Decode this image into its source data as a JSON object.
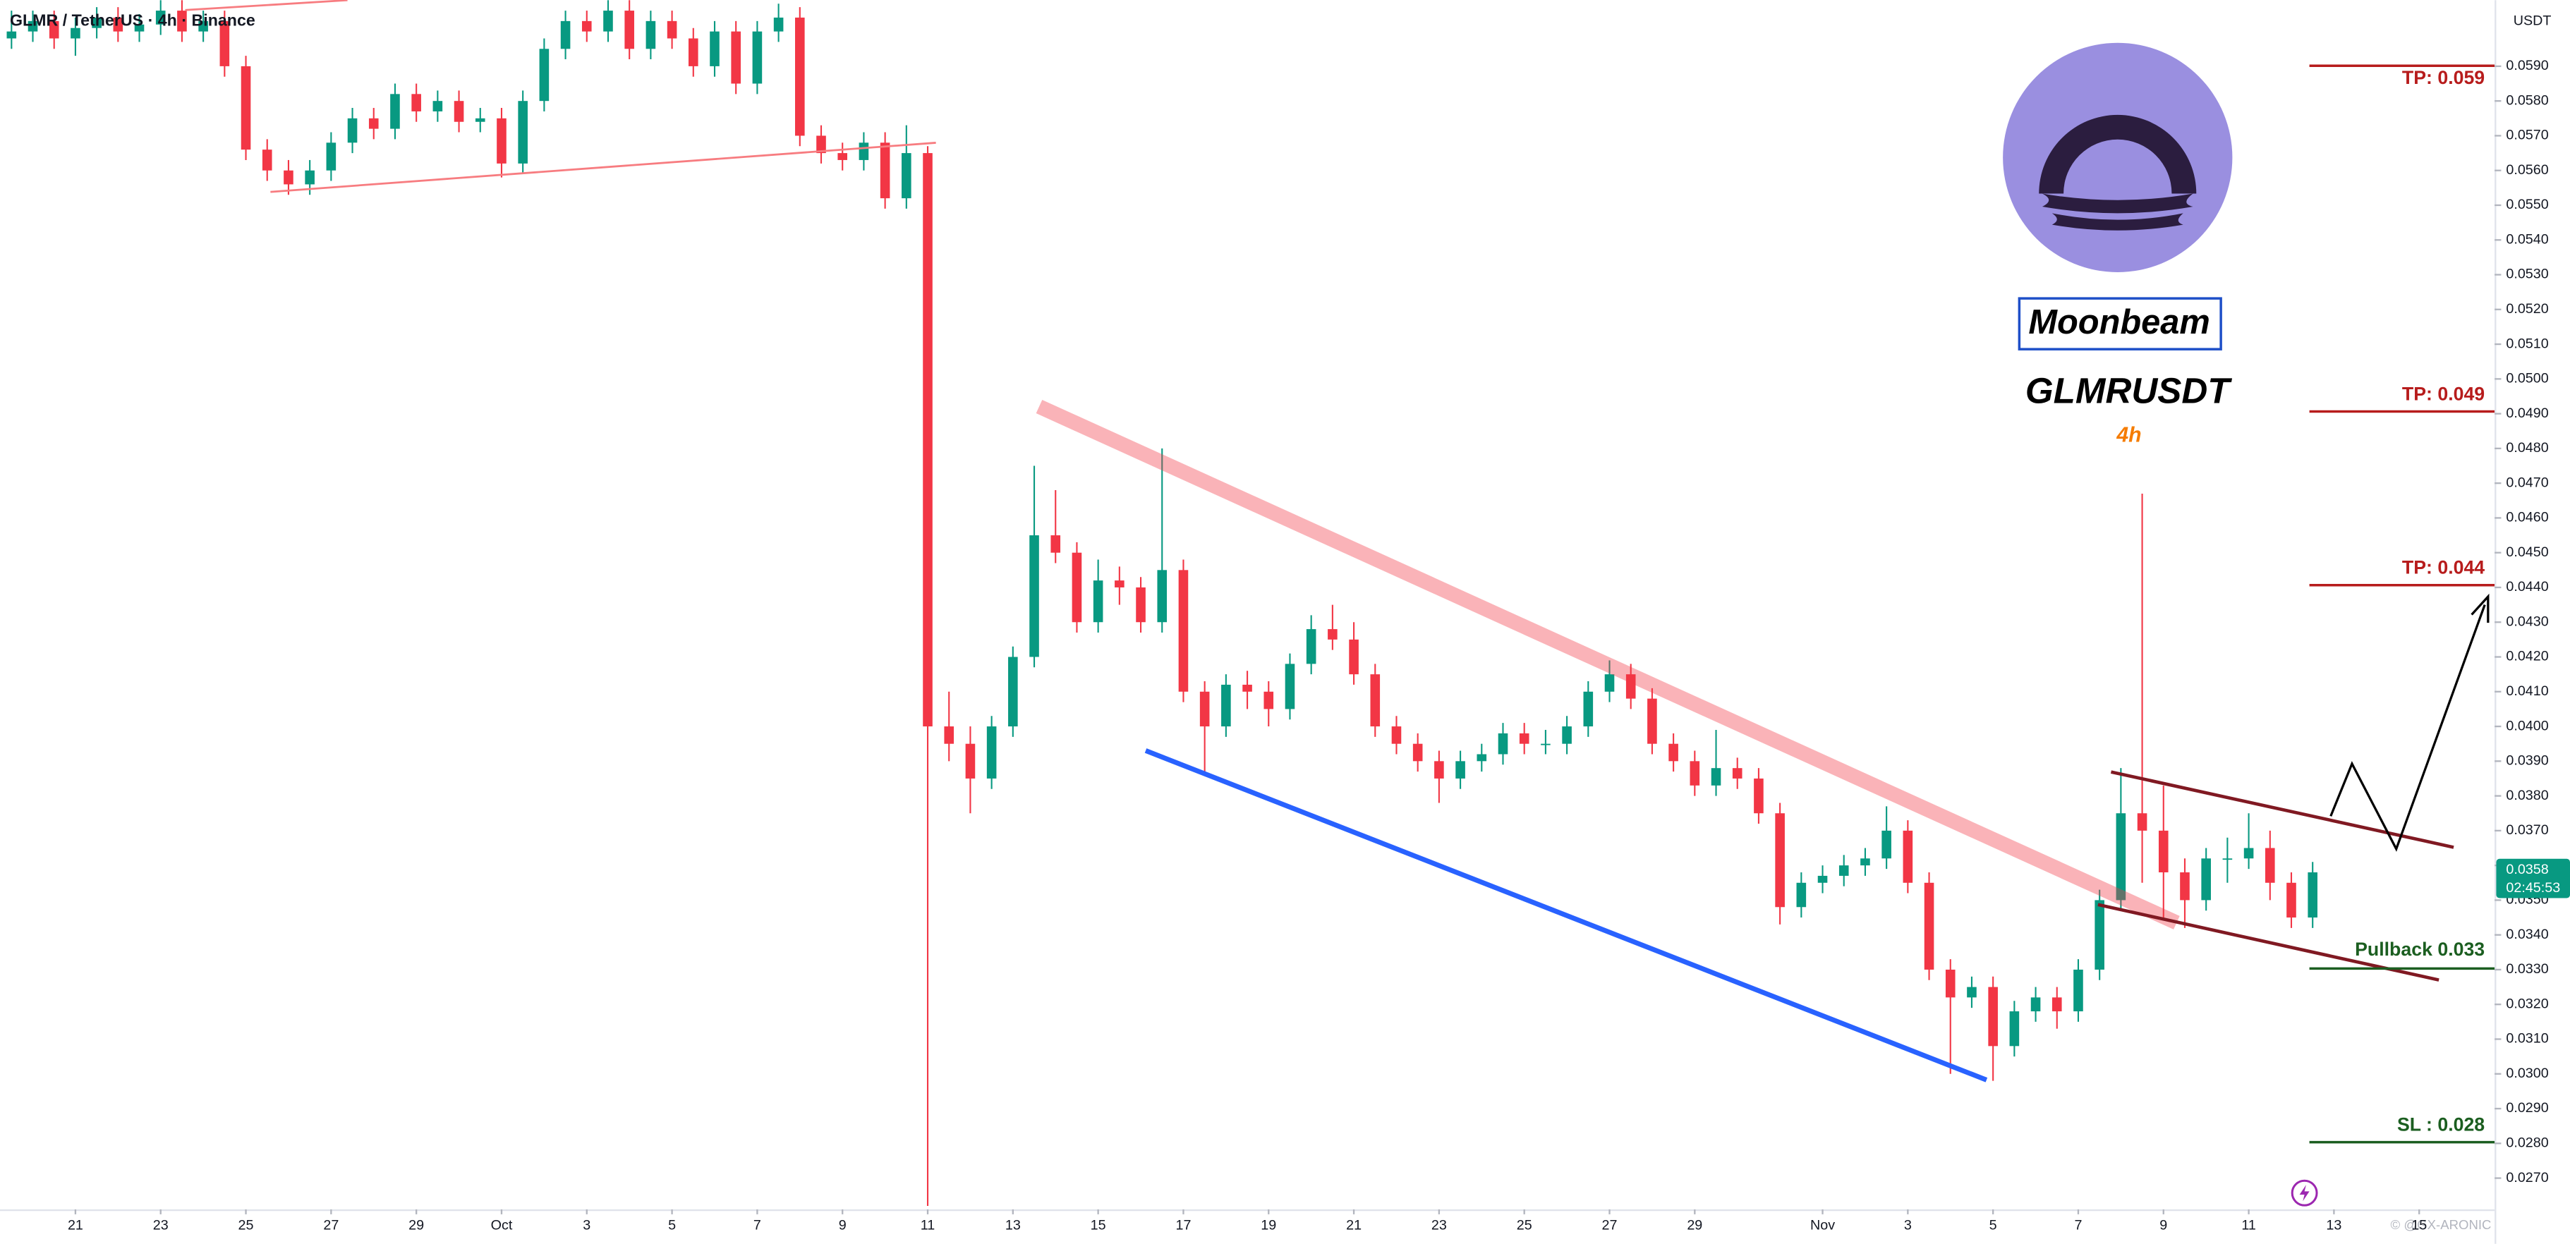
{
  "chart_data": {
    "type": "candlestick",
    "title": "GLMR / TetherUS · 4h · Binance",
    "currency": "USDT",
    "last_price": "0.0358",
    "countdown": "02:45:53",
    "annotations": [
      "TP: 0.059",
      "TP: 0.049",
      "TP: 0.044",
      "Pullback 0.033",
      "SL : 0.028",
      "Moonbeam",
      "GLMRUSDT",
      "4h",
      "© @GX-ARONIC"
    ],
    "up_color": "#089981",
    "down_color": "#f23645",
    "grid": false,
    "xlim": [
      -1.77,
      56.77
    ],
    "ylim": [
      0.0261,
      0.0609
    ],
    "xticks": [
      {
        "value": 0,
        "label": "21"
      },
      {
        "value": 2,
        "label": "23"
      },
      {
        "value": 4,
        "label": "25"
      },
      {
        "value": 6,
        "label": "27"
      },
      {
        "value": 8,
        "label": "29"
      },
      {
        "value": 10,
        "label": "Oct"
      },
      {
        "value": 12,
        "label": "3"
      },
      {
        "value": 14,
        "label": "5"
      },
      {
        "value": 16,
        "label": "7"
      },
      {
        "value": 18,
        "label": "9"
      },
      {
        "value": 20,
        "label": "11"
      },
      {
        "value": 22,
        "label": "13"
      },
      {
        "value": 24,
        "label": "15"
      },
      {
        "value": 26,
        "label": "17"
      },
      {
        "value": 28,
        "label": "19"
      },
      {
        "value": 30,
        "label": "21"
      },
      {
        "value": 32,
        "label": "23"
      },
      {
        "value": 34,
        "label": "25"
      },
      {
        "value": 36,
        "label": "27"
      },
      {
        "value": 38,
        "label": "29"
      },
      {
        "value": 41,
        "label": "Nov"
      },
      {
        "value": 43,
        "label": "3"
      },
      {
        "value": 45,
        "label": "5"
      },
      {
        "value": 47,
        "label": "7"
      },
      {
        "value": 49,
        "label": "9"
      },
      {
        "value": 51,
        "label": "11"
      },
      {
        "value": 53,
        "label": "13"
      },
      {
        "value": 55,
        "label": "15"
      }
    ],
    "yticks": [
      {
        "value": 0.027,
        "label": "0.0270"
      },
      {
        "value": 0.028,
        "label": "0.0280"
      },
      {
        "value": 0.029,
        "label": "0.0290"
      },
      {
        "value": 0.03,
        "label": "0.0300"
      },
      {
        "value": 0.031,
        "label": "0.0310"
      },
      {
        "value": 0.032,
        "label": "0.0320"
      },
      {
        "value": 0.033,
        "label": "0.0330"
      },
      {
        "value": 0.034,
        "label": "0.0340"
      },
      {
        "value": 0.035,
        "label": "0.0350"
      },
      {
        "value": 0.036,
        "label": "0.0360"
      },
      {
        "value": 0.037,
        "label": "0.0370"
      },
      {
        "value": 0.038,
        "label": "0.0380"
      },
      {
        "value": 0.039,
        "label": "0.0390"
      },
      {
        "value": 0.04,
        "label": "0.0400"
      },
      {
        "value": 0.041,
        "label": "0.0410"
      },
      {
        "value": 0.042,
        "label": "0.0420"
      },
      {
        "value": 0.043,
        "label": "0.0430"
      },
      {
        "value": 0.044,
        "label": "0.0440"
      },
      {
        "value": 0.045,
        "label": "0.0450"
      },
      {
        "value": 0.046,
        "label": "0.0460"
      },
      {
        "value": 0.047,
        "label": "0.0470"
      },
      {
        "value": 0.048,
        "label": "0.0480"
      },
      {
        "value": 0.049,
        "label": "0.0490"
      },
      {
        "value": 0.05,
        "label": "0.0500"
      },
      {
        "value": 0.051,
        "label": "0.0510"
      },
      {
        "value": 0.052,
        "label": "0.0520"
      },
      {
        "value": 0.053,
        "label": "0.0530"
      },
      {
        "value": 0.054,
        "label": "0.0540"
      },
      {
        "value": 0.055,
        "label": "0.0550"
      },
      {
        "value": 0.056,
        "label": "0.0560"
      },
      {
        "value": 0.057,
        "label": "0.0570"
      },
      {
        "value": 0.058,
        "label": "0.0580"
      },
      {
        "value": 0.059,
        "label": "0.0590"
      }
    ],
    "x": [
      -1.5,
      -1,
      -0.5,
      0,
      0.5,
      1,
      1.5,
      2,
      2.5,
      3,
      3.5,
      4,
      4.5,
      5,
      5.5,
      6,
      6.5,
      7,
      7.5,
      8,
      8.5,
      9,
      9.5,
      10,
      10.5,
      11,
      11.5,
      12,
      12.5,
      13,
      13.5,
      14,
      14.5,
      15,
      15.5,
      16,
      16.5,
      17,
      17.5,
      18,
      18.5,
      19,
      19.5,
      20,
      20.5,
      21,
      21.5,
      22,
      22.5,
      23,
      23.5,
      24,
      24.5,
      25,
      25.5,
      26,
      26.5,
      27,
      27.5,
      28,
      28.5,
      29,
      29.5,
      30,
      30.5,
      31,
      31.5,
      32,
      32.5,
      33,
      33.5,
      34,
      34.5,
      35,
      35.5,
      36,
      36.5,
      37,
      37.5,
      38,
      38.5,
      39,
      39.5,
      40,
      40.5,
      41,
      41.5,
      42,
      42.5,
      43,
      43.5,
      44,
      44.5,
      45,
      45.5,
      46,
      46.5,
      47,
      47.5,
      48,
      48.5,
      49,
      49.5,
      50,
      50.5,
      51,
      51.5,
      52,
      52.5
    ],
    "candles": [
      [
        0.0598,
        0.0606,
        0.0595,
        0.06
      ],
      [
        0.06,
        0.0606,
        0.0597,
        0.0603
      ],
      [
        0.0603,
        0.0606,
        0.0595,
        0.0598
      ],
      [
        0.0598,
        0.0604,
        0.0593,
        0.0601
      ],
      [
        0.0601,
        0.0607,
        0.0598,
        0.0604
      ],
      [
        0.0604,
        0.0607,
        0.0597,
        0.06
      ],
      [
        0.06,
        0.0605,
        0.0597,
        0.0602
      ],
      [
        0.0602,
        0.0609,
        0.0599,
        0.0606
      ],
      [
        0.0606,
        0.0609,
        0.0597,
        0.06
      ],
      [
        0.06,
        0.0606,
        0.0597,
        0.0603
      ],
      [
        0.0603,
        0.0606,
        0.0587,
        0.059
      ],
      [
        0.059,
        0.0593,
        0.0563,
        0.0566
      ],
      [
        0.0566,
        0.0569,
        0.0557,
        0.056
      ],
      [
        0.056,
        0.0563,
        0.0553,
        0.0556
      ],
      [
        0.0556,
        0.0563,
        0.0553,
        0.056
      ],
      [
        0.056,
        0.0571,
        0.0557,
        0.0568
      ],
      [
        0.0568,
        0.0578,
        0.0565,
        0.0575
      ],
      [
        0.0575,
        0.0578,
        0.0569,
        0.0572
      ],
      [
        0.0572,
        0.0585,
        0.0569,
        0.0582
      ],
      [
        0.0582,
        0.0585,
        0.0574,
        0.0577
      ],
      [
        0.0577,
        0.0583,
        0.0574,
        0.058
      ],
      [
        0.058,
        0.0583,
        0.0571,
        0.0574
      ],
      [
        0.0574,
        0.0578,
        0.0571,
        0.0575
      ],
      [
        0.0575,
        0.0578,
        0.0558,
        0.0562
      ],
      [
        0.0562,
        0.0583,
        0.0559,
        0.058
      ],
      [
        0.058,
        0.0598,
        0.0577,
        0.0595
      ],
      [
        0.0595,
        0.0606,
        0.0592,
        0.0603
      ],
      [
        0.0603,
        0.0606,
        0.0597,
        0.06
      ],
      [
        0.06,
        0.0609,
        0.0597,
        0.0606
      ],
      [
        0.0606,
        0.0609,
        0.0592,
        0.0595
      ],
      [
        0.0595,
        0.0606,
        0.0592,
        0.0603
      ],
      [
        0.0603,
        0.0606,
        0.0595,
        0.0598
      ],
      [
        0.0598,
        0.0601,
        0.0587,
        0.059
      ],
      [
        0.059,
        0.0603,
        0.0587,
        0.06
      ],
      [
        0.06,
        0.0603,
        0.0582,
        0.0585
      ],
      [
        0.0585,
        0.0603,
        0.0582,
        0.06
      ],
      [
        0.06,
        0.0608,
        0.0597,
        0.0604
      ],
      [
        0.0604,
        0.0607,
        0.0567,
        0.057
      ],
      [
        0.057,
        0.0573,
        0.0562,
        0.0565
      ],
      [
        0.0565,
        0.0568,
        0.056,
        0.0563
      ],
      [
        0.0563,
        0.0571,
        0.056,
        0.0568
      ],
      [
        0.0568,
        0.0571,
        0.0549,
        0.0552
      ],
      [
        0.0552,
        0.0573,
        0.0549,
        0.0565
      ],
      [
        0.0565,
        0.0567,
        0.0262,
        0.04
      ],
      [
        0.04,
        0.041,
        0.039,
        0.0395
      ],
      [
        0.0395,
        0.04,
        0.0375,
        0.0385
      ],
      [
        0.0385,
        0.0403,
        0.0382,
        0.04
      ],
      [
        0.04,
        0.0423,
        0.0397,
        0.042
      ],
      [
        0.042,
        0.0475,
        0.0417,
        0.0455
      ],
      [
        0.0455,
        0.0468,
        0.0447,
        0.045
      ],
      [
        0.045,
        0.0453,
        0.0427,
        0.043
      ],
      [
        0.043,
        0.0448,
        0.0427,
        0.0442
      ],
      [
        0.0442,
        0.0446,
        0.0435,
        0.044
      ],
      [
        0.044,
        0.0443,
        0.0427,
        0.043
      ],
      [
        0.043,
        0.048,
        0.0427,
        0.0445
      ],
      [
        0.0445,
        0.0448,
        0.0407,
        0.041
      ],
      [
        0.041,
        0.0413,
        0.0387,
        0.04
      ],
      [
        0.04,
        0.0415,
        0.0397,
        0.0412
      ],
      [
        0.0412,
        0.0416,
        0.0405,
        0.041
      ],
      [
        0.041,
        0.0413,
        0.04,
        0.0405
      ],
      [
        0.0405,
        0.0421,
        0.0402,
        0.0418
      ],
      [
        0.0418,
        0.0432,
        0.0415,
        0.0428
      ],
      [
        0.0428,
        0.0435,
        0.0422,
        0.0425
      ],
      [
        0.0425,
        0.043,
        0.0412,
        0.0415
      ],
      [
        0.0415,
        0.0418,
        0.0397,
        0.04
      ],
      [
        0.04,
        0.0403,
        0.0392,
        0.0395
      ],
      [
        0.0395,
        0.0398,
        0.0387,
        0.039
      ],
      [
        0.039,
        0.0393,
        0.0378,
        0.0385
      ],
      [
        0.0385,
        0.0393,
        0.0382,
        0.039
      ],
      [
        0.039,
        0.0395,
        0.0387,
        0.0392
      ],
      [
        0.0392,
        0.0401,
        0.0389,
        0.0398
      ],
      [
        0.0398,
        0.0401,
        0.0392,
        0.0395
      ],
      [
        0.0395,
        0.0399,
        0.0392,
        0.0395
      ],
      [
        0.0395,
        0.0403,
        0.0392,
        0.04
      ],
      [
        0.04,
        0.0413,
        0.0397,
        0.041
      ],
      [
        0.041,
        0.0419,
        0.0407,
        0.0415
      ],
      [
        0.0415,
        0.0418,
        0.0405,
        0.0408
      ],
      [
        0.0408,
        0.0411,
        0.0392,
        0.0395
      ],
      [
        0.0395,
        0.0398,
        0.0387,
        0.039
      ],
      [
        0.039,
        0.0393,
        0.038,
        0.0383
      ],
      [
        0.0383,
        0.0399,
        0.038,
        0.0388
      ],
      [
        0.0388,
        0.0391,
        0.0382,
        0.0385
      ],
      [
        0.0385,
        0.0388,
        0.0372,
        0.0375
      ],
      [
        0.0375,
        0.0378,
        0.0343,
        0.0348
      ],
      [
        0.0348,
        0.0358,
        0.0345,
        0.0355
      ],
      [
        0.0355,
        0.036,
        0.0352,
        0.0357
      ],
      [
        0.0357,
        0.0363,
        0.0354,
        0.036
      ],
      [
        0.036,
        0.0365,
        0.0357,
        0.0362
      ],
      [
        0.0362,
        0.0377,
        0.0359,
        0.037
      ],
      [
        0.037,
        0.0373,
        0.0352,
        0.0355
      ],
      [
        0.0355,
        0.0358,
        0.0327,
        0.033
      ],
      [
        0.033,
        0.0333,
        0.03,
        0.0322
      ],
      [
        0.0322,
        0.0328,
        0.0319,
        0.0325
      ],
      [
        0.0325,
        0.0328,
        0.0298,
        0.0308
      ],
      [
        0.0308,
        0.0321,
        0.0305,
        0.0318
      ],
      [
        0.0318,
        0.0325,
        0.0315,
        0.0322
      ],
      [
        0.0322,
        0.0325,
        0.0313,
        0.0318
      ],
      [
        0.0318,
        0.0333,
        0.0315,
        0.033
      ],
      [
        0.033,
        0.0353,
        0.0327,
        0.035
      ],
      [
        0.035,
        0.0388,
        0.0347,
        0.0375
      ],
      [
        0.0375,
        0.0467,
        0.0355,
        0.037
      ],
      [
        0.037,
        0.0383,
        0.0345,
        0.0358
      ],
      [
        0.0358,
        0.0362,
        0.0342,
        0.035
      ],
      [
        0.035,
        0.0365,
        0.0347,
        0.0362
      ],
      [
        0.0362,
        0.0368,
        0.0355,
        0.0362
      ],
      [
        0.0362,
        0.0375,
        0.0359,
        0.0365
      ],
      [
        0.0365,
        0.037,
        0.035,
        0.0355
      ],
      [
        0.0355,
        0.0358,
        0.0342,
        0.0345
      ],
      [
        0.0345,
        0.0361,
        0.0342,
        0.0358
      ]
    ]
  }
}
